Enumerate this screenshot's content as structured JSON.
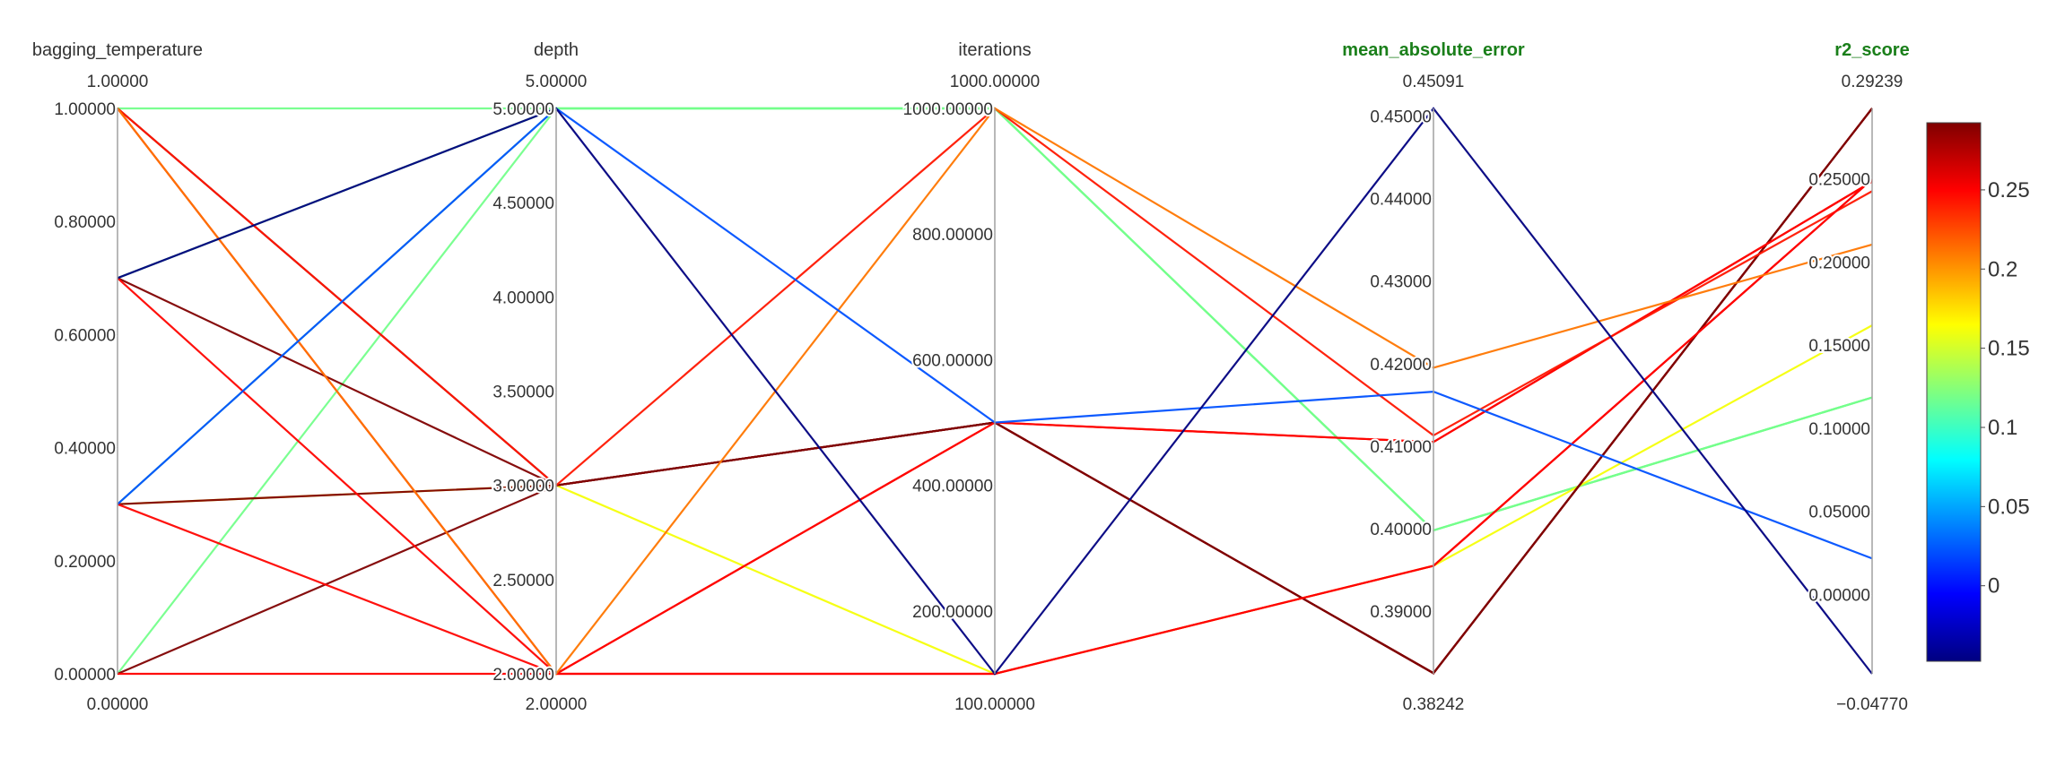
{
  "chart_data": {
    "type": "parallel_coordinates",
    "title": "",
    "colorscale": "jet",
    "color_by": "r2_score",
    "dimensions": [
      {
        "label": "bagging_temperature",
        "highlight": false,
        "range": [
          0,
          1
        ],
        "range_labels": {
          "max": "1.00000",
          "min": "0.00000"
        },
        "ticks": [
          {
            "value": 0.0,
            "label": "0.00000"
          },
          {
            "value": 0.2,
            "label": "0.20000"
          },
          {
            "value": 0.4,
            "label": "0.40000"
          },
          {
            "value": 0.6,
            "label": "0.60000"
          },
          {
            "value": 0.8,
            "label": "0.80000"
          },
          {
            "value": 1.0,
            "label": "1.00000"
          }
        ]
      },
      {
        "label": "depth",
        "highlight": false,
        "range": [
          2,
          5
        ],
        "range_labels": {
          "max": "5.00000",
          "min": "2.00000"
        },
        "ticks": [
          {
            "value": 2.0,
            "label": "2.00000"
          },
          {
            "value": 2.5,
            "label": "2.50000"
          },
          {
            "value": 3.0,
            "label": "3.00000"
          },
          {
            "value": 3.5,
            "label": "3.50000"
          },
          {
            "value": 4.0,
            "label": "4.00000"
          },
          {
            "value": 4.5,
            "label": "4.50000"
          },
          {
            "value": 5.0,
            "label": "5.00000"
          }
        ]
      },
      {
        "label": "iterations",
        "highlight": false,
        "range": [
          100,
          1000
        ],
        "range_labels": {
          "max": "1000.00000",
          "min": "100.00000"
        },
        "ticks": [
          {
            "value": 200,
            "label": "200.00000"
          },
          {
            "value": 400,
            "label": "400.00000"
          },
          {
            "value": 600,
            "label": "600.00000"
          },
          {
            "value": 800,
            "label": "800.00000"
          },
          {
            "value": 1000,
            "label": "1000.00000"
          }
        ]
      },
      {
        "label": "mean_absolute_error",
        "highlight": true,
        "range": [
          0.38242,
          0.45091
        ],
        "range_labels": {
          "max": "0.45091",
          "min": "0.38242"
        },
        "ticks": [
          {
            "value": 0.39,
            "label": "0.39000"
          },
          {
            "value": 0.4,
            "label": "0.40000"
          },
          {
            "value": 0.41,
            "label": "0.41000"
          },
          {
            "value": 0.42,
            "label": "0.42000"
          },
          {
            "value": 0.43,
            "label": "0.43000"
          },
          {
            "value": 0.44,
            "label": "0.44000"
          },
          {
            "value": 0.45,
            "label": "0.45000"
          }
        ]
      },
      {
        "label": "r2_score",
        "highlight": true,
        "range": [
          -0.0477,
          0.29239
        ],
        "range_labels": {
          "max": "0.29239",
          "min": "−0.04770"
        },
        "ticks": [
          {
            "value": 0.0,
            "label": "0.00000"
          },
          {
            "value": 0.05,
            "label": "0.05000"
          },
          {
            "value": 0.1,
            "label": "0.10000"
          },
          {
            "value": 0.15,
            "label": "0.15000"
          },
          {
            "value": 0.2,
            "label": "0.20000"
          },
          {
            "value": 0.25,
            "label": "0.25000"
          }
        ]
      }
    ],
    "lines": [
      {
        "values": [
          0.7,
          5,
          1000,
          0.3998,
          0.1185
        ]
      },
      {
        "values": [
          0.3,
          5,
          1000,
          0.3998,
          0.1185
        ]
      },
      {
        "values": [
          0.0,
          5,
          1000,
          0.3998,
          0.1185
        ]
      },
      {
        "values": [
          1.0,
          5,
          1000,
          0.3998,
          0.1185
        ]
      },
      {
        "values": [
          0.3,
          3,
          100,
          0.3955,
          0.1619
        ]
      },
      {
        "values": [
          0.7,
          3,
          500,
          0.3825,
          0.2924
        ]
      },
      {
        "values": [
          0.0,
          3,
          500,
          0.3825,
          0.2924
        ]
      },
      {
        "values": [
          1.0,
          3,
          500,
          0.3825,
          0.2924
        ]
      },
      {
        "values": [
          0.3,
          3,
          500,
          0.3825,
          0.2924
        ]
      },
      {
        "values": [
          0.7,
          2,
          500,
          0.4105,
          0.2484
        ]
      },
      {
        "values": [
          0.3,
          2,
          500,
          0.4105,
          0.2484
        ]
      },
      {
        "values": [
          1.0,
          3,
          1000,
          0.4113,
          0.2426
        ]
      },
      {
        "values": [
          0.0,
          2,
          100,
          0.3955,
          0.2497
        ]
      },
      {
        "values": [
          1.0,
          2,
          100,
          0.3955,
          0.2497
        ]
      },
      {
        "values": [
          1.0,
          2,
          1000,
          0.4195,
          0.2105
        ]
      },
      {
        "values": [
          0.3,
          5,
          500,
          0.4166,
          0.0217
        ]
      },
      {
        "values": [
          0.7,
          5,
          100,
          0.4509,
          -0.0477
        ]
      }
    ],
    "colorbar": {
      "range": [
        -0.0477,
        0.29239
      ],
      "ticks": [
        {
          "value": 0,
          "label": "0"
        },
        {
          "value": 0.05,
          "label": "0.05"
        },
        {
          "value": 0.1,
          "label": "0.1"
        },
        {
          "value": 0.15,
          "label": "0.15"
        },
        {
          "value": 0.2,
          "label": "0.2"
        },
        {
          "value": 0.25,
          "label": "0.25"
        }
      ]
    }
  }
}
